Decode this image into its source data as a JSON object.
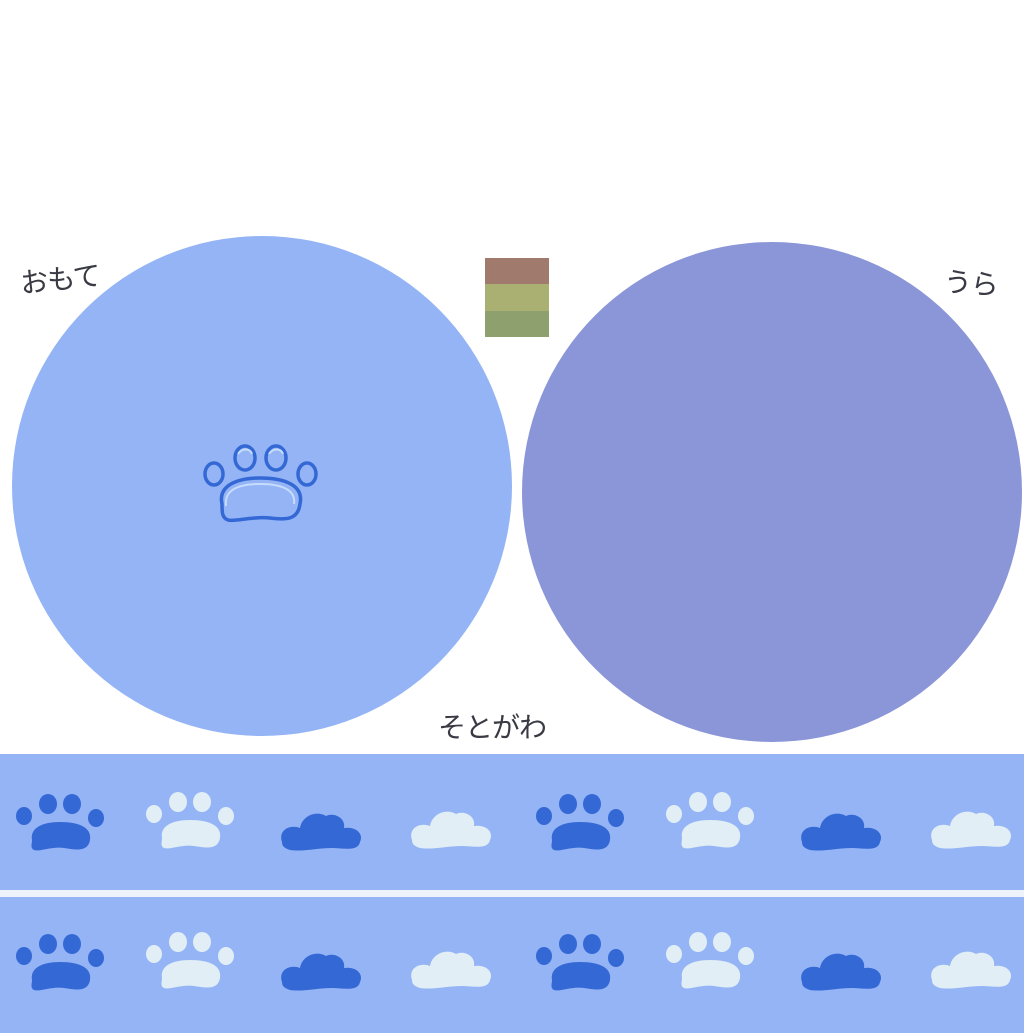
{
  "labels": {
    "front": "おもて",
    "back": "うら",
    "side": "そとがわ"
  },
  "colors": {
    "background": "#ffffff",
    "front_circle": "#94b4f6",
    "back_circle": "#8b96d8",
    "strip": "#94b4f6",
    "strip_gap": "#eef2fb",
    "paw_dark": "#3468d4",
    "paw_light": "#e2eef5",
    "label_ink": "#3a3a44",
    "swatch": [
      "#a07a6c",
      "#a9b072",
      "#8ea06e"
    ]
  },
  "strip_pattern": [
    "paw-print-dark",
    "paw-print-light",
    "cloud-dark",
    "cloud-light",
    "paw-print-dark",
    "paw-print-light",
    "cloud-dark",
    "cloud-light"
  ]
}
